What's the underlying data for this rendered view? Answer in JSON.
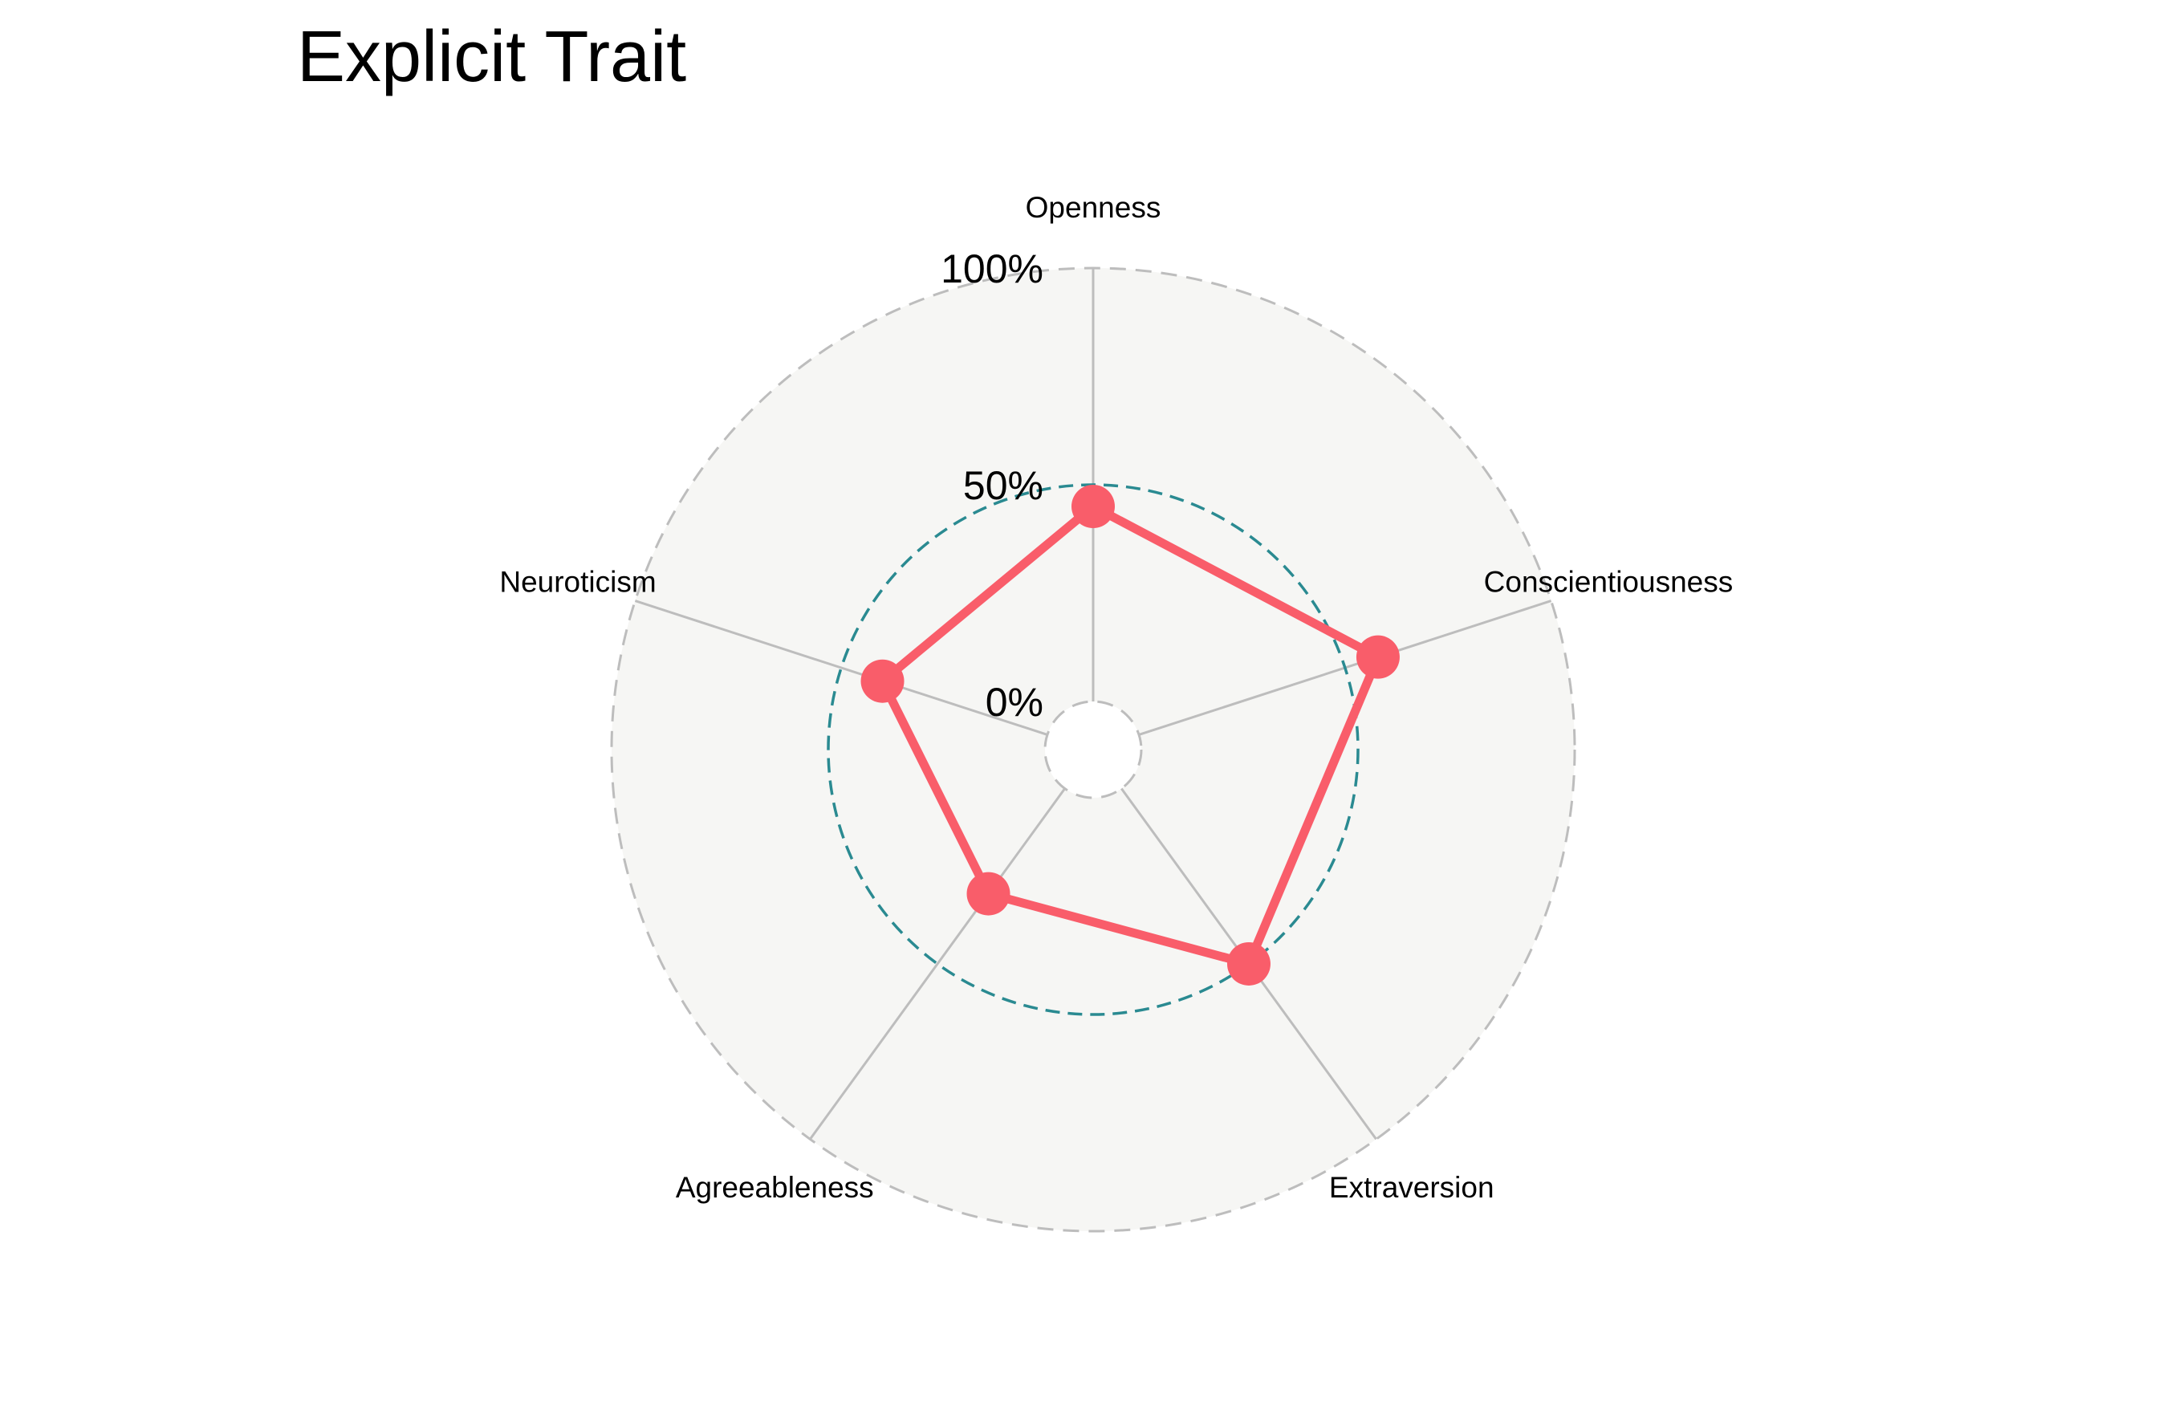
{
  "chart_data": {
    "type": "radar",
    "title": "Explicit Trait",
    "axes": [
      "Openness",
      "Conscientiousness",
      "Extraversion",
      "Agreeableness",
      "Neuroticism"
    ],
    "values": [
      45,
      58,
      50,
      30,
      40
    ],
    "value_unit": "%",
    "rlim": [
      0,
      100
    ],
    "tick_values": [
      0,
      50,
      100
    ],
    "tick_labels": [
      "0%",
      "50%",
      "100%"
    ],
    "colors": {
      "series": "#F95D6A",
      "midline": "#2A8A91",
      "outer_grid": "#BDBDBD",
      "spokes": "#BDBDBD",
      "background": "#F6F6F4"
    }
  }
}
